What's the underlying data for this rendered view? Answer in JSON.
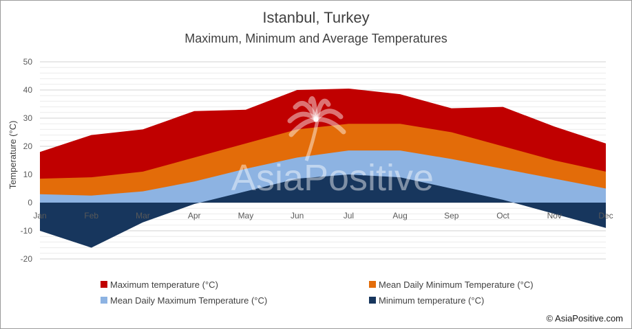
{
  "chart_data": {
    "type": "area",
    "title": "Istanbul, Turkey",
    "subtitle": "Maximum, Minimum and Average Temperatures",
    "ylabel": "Temperature    (°C)",
    "xlabel": "",
    "categories": [
      "Jan",
      "Feb",
      "Mar",
      "Apr",
      "May",
      "Jun",
      "Jul",
      "Aug",
      "Sep",
      "Oct",
      "Nov",
      "Dec"
    ],
    "ylim": [
      -20,
      50
    ],
    "yticks": [
      -20,
      -10,
      0,
      10,
      20,
      30,
      40,
      50
    ],
    "grid": true,
    "legend_position": "bottom",
    "series": [
      {
        "name": "Maximum temperature (°C)",
        "color": "#c00000",
        "values": [
          18,
          24,
          26,
          32.5,
          33,
          40,
          40.5,
          38.5,
          33.5,
          34,
          27,
          21
        ]
      },
      {
        "name": "Mean Daily Minimum Temperature (°C)",
        "color": "#e36c09",
        "values": [
          8.5,
          9,
          11,
          16,
          21,
          26,
          28,
          28,
          25,
          20,
          15,
          11
        ]
      },
      {
        "name": "Mean Daily Maximum Temperature (°C)",
        "color": "#8db3e2",
        "values": [
          3,
          2.5,
          4,
          7.5,
          12,
          16,
          18.5,
          18.5,
          15.5,
          12,
          8.5,
          5
        ]
      },
      {
        "name": "Minimum temperature   (°C)",
        "color": "#17365d",
        "values": [
          -10,
          -16,
          -7,
          -0.5,
          4,
          8.5,
          10,
          9,
          5,
          1,
          -4,
          -9
        ]
      }
    ],
    "legend_order": [
      0,
      1,
      2,
      3
    ]
  },
  "watermark": "AsiaPositive",
  "copyright": "© AsiaPositive.com"
}
